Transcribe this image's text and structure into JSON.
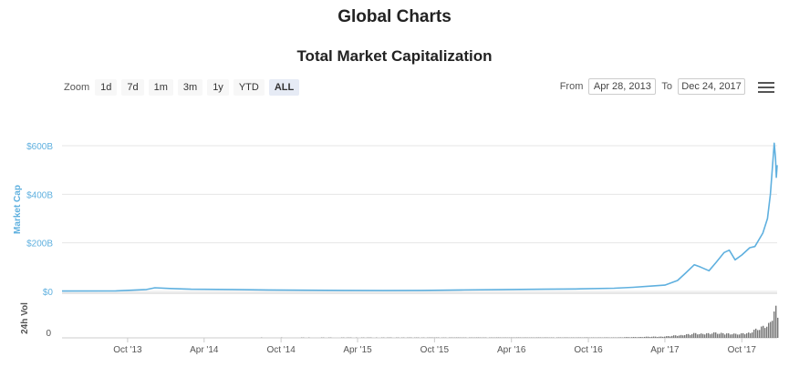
{
  "page": {
    "title": "Global Charts"
  },
  "toolbar": {
    "zoom_label": "Zoom",
    "zoom_options": [
      "1d",
      "7d",
      "1m",
      "3m",
      "1y",
      "YTD",
      "ALL"
    ],
    "active_zoom": "ALL",
    "from_label": "From",
    "from_value": "Apr 28, 2013",
    "to_label": "To",
    "to_value": "Dec 24, 2017",
    "menu_icon": "hamburger-menu-icon"
  },
  "chart_data": {
    "type": "line",
    "title": "Total Market Capitalization",
    "ylabel": "Market Cap",
    "ylabel_volume": "24h Vol",
    "y_ticks": [
      "$0",
      "$200B",
      "$400B",
      "$600B"
    ],
    "y_tick_values": [
      0,
      200,
      400,
      600
    ],
    "ylim": [
      0,
      600
    ],
    "volume_tick": "0",
    "x_ticks": [
      "Oct '13",
      "Apr '14",
      "Oct '14",
      "Apr '15",
      "Oct '15",
      "Apr '16",
      "Oct '16",
      "Apr '17",
      "Oct '17"
    ],
    "x_tick_dates": [
      "2013-10-01",
      "2014-04-01",
      "2014-10-01",
      "2015-04-01",
      "2015-10-01",
      "2016-04-01",
      "2016-10-01",
      "2017-04-01",
      "2017-10-01"
    ],
    "xlim": [
      "2013-04-28",
      "2017-12-24"
    ],
    "grid": true,
    "colors": {
      "line": "#5fb0df",
      "axis_text": "#5fb0df",
      "volume": "#777777",
      "grid": "#e6e6e6"
    },
    "series": [
      {
        "values_unit": "billions USD",
        "x": [
          "2013-04-28",
          "2013-09-01",
          "2013-11-15",
          "2013-12-05",
          "2014-01-10",
          "2014-03-01",
          "2014-06-01",
          "2014-09-01",
          "2014-12-01",
          "2015-03-01",
          "2015-06-01",
          "2015-09-01",
          "2015-12-01",
          "2016-03-01",
          "2016-06-15",
          "2016-09-01",
          "2016-12-01",
          "2017-01-15",
          "2017-03-01",
          "2017-04-01",
          "2017-05-01",
          "2017-05-20",
          "2017-06-10",
          "2017-06-25",
          "2017-07-15",
          "2017-08-01",
          "2017-08-20",
          "2017-09-01",
          "2017-09-15",
          "2017-10-01",
          "2017-10-20",
          "2017-11-01",
          "2017-11-20",
          "2017-12-01",
          "2017-12-08",
          "2017-12-17",
          "2017-12-20",
          "2017-12-22",
          "2017-12-24"
        ],
        "y": [
          1.5,
          2,
          8,
          15,
          12,
          9,
          8,
          6,
          5,
          4,
          3.5,
          4,
          6,
          7,
          9,
          10,
          13,
          17,
          22,
          26,
          45,
          75,
          110,
          100,
          85,
          120,
          160,
          170,
          130,
          150,
          180,
          185,
          240,
          300,
          400,
          610,
          550,
          470,
          520
        ]
      }
    ],
    "volume": {
      "x": [
        "2013-04-28",
        "2016-12-01",
        "2017-04-01",
        "2017-06-10",
        "2017-08-20",
        "2017-09-15",
        "2017-10-20",
        "2017-11-20",
        "2017-12-01",
        "2017-12-08",
        "2017-12-17",
        "2017-12-22",
        "2017-12-24"
      ],
      "y": [
        0.1,
        0.3,
        1,
        3,
        3.5,
        2.5,
        4,
        8,
        10,
        14,
        18,
        22,
        16
      ]
    }
  }
}
